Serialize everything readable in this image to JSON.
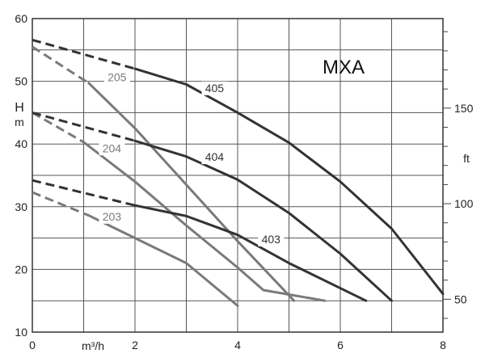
{
  "chart_data": {
    "type": "line",
    "title": "MXA",
    "xlabel": "m³/h",
    "ylabel": "H",
    "ylabel_unit": "m",
    "y2label": "ft",
    "xlim": [
      0,
      8
    ],
    "ylim": [
      10,
      60
    ],
    "x_ticks": [
      "0",
      "2",
      "4",
      "6",
      "8"
    ],
    "y_ticks": [
      "10",
      "20",
      "30",
      "40",
      "50",
      "60"
    ],
    "y2_ticks": [
      "50",
      "100",
      "150"
    ],
    "grid": true,
    "colors": {
      "dark": "#333333",
      "gray": "#7a7a7a"
    },
    "series": [
      {
        "name": "205",
        "color": "gray",
        "dashed": [
          [
            0,
            55.5
          ],
          [
            1.1,
            49.7
          ]
        ],
        "values": [
          [
            1.1,
            49.7
          ],
          [
            2,
            42.5
          ],
          [
            3,
            33.5
          ],
          [
            4,
            24.5
          ],
          [
            5.1,
            15.0
          ]
        ]
      },
      {
        "name": "405",
        "color": "dark",
        "dashed": [
          [
            0,
            56.6
          ],
          [
            2,
            52.0
          ]
        ],
        "values": [
          [
            2,
            52.0
          ],
          [
            3,
            49.5
          ],
          [
            4,
            45.0
          ],
          [
            5,
            40.2
          ],
          [
            6,
            34.0
          ],
          [
            7,
            26.5
          ],
          [
            8,
            16.1
          ]
        ]
      },
      {
        "name": "204",
        "color": "gray",
        "dashed": [
          [
            0,
            45.0
          ],
          [
            1.0,
            40.3
          ]
        ],
        "values": [
          [
            1.0,
            40.3
          ],
          [
            2,
            34.0
          ],
          [
            3,
            27.0
          ],
          [
            4,
            20.3
          ],
          [
            4.5,
            16.7
          ],
          [
            5.7,
            15.0
          ]
        ]
      },
      {
        "name": "404",
        "color": "dark",
        "dashed": [
          [
            0,
            45.0
          ],
          [
            2,
            40.5
          ]
        ],
        "values": [
          [
            2,
            40.5
          ],
          [
            3,
            38.0
          ],
          [
            4,
            34.3
          ],
          [
            5,
            29.0
          ],
          [
            6,
            22.5
          ],
          [
            7,
            15.0
          ]
        ]
      },
      {
        "name": "203",
        "color": "gray",
        "dashed": [
          [
            0,
            32.3
          ],
          [
            1.1,
            28.6
          ]
        ],
        "values": [
          [
            1.1,
            28.6
          ],
          [
            2,
            25.0
          ],
          [
            3,
            21.0
          ],
          [
            4,
            14.2
          ]
        ]
      },
      {
        "name": "403",
        "color": "dark",
        "dashed": [
          [
            0,
            34.2
          ],
          [
            2,
            30.2
          ]
        ],
        "values": [
          [
            2,
            30.2
          ],
          [
            3,
            28.5
          ],
          [
            4,
            25.5
          ],
          [
            5,
            21.0
          ],
          [
            6.5,
            15.0
          ]
        ]
      }
    ],
    "curve_labels": [
      {
        "text": "205",
        "x": 1.65,
        "y": 50.0,
        "color": "gray"
      },
      {
        "text": "405",
        "x": 3.55,
        "y": 48.3,
        "color": "dark"
      },
      {
        "text": "204",
        "x": 1.55,
        "y": 38.7,
        "color": "gray"
      },
      {
        "text": "404",
        "x": 3.55,
        "y": 37.3,
        "color": "dark"
      },
      {
        "text": "203",
        "x": 1.55,
        "y": 27.8,
        "color": "gray"
      },
      {
        "text": "403",
        "x": 4.65,
        "y": 24.2,
        "color": "dark"
      }
    ]
  }
}
